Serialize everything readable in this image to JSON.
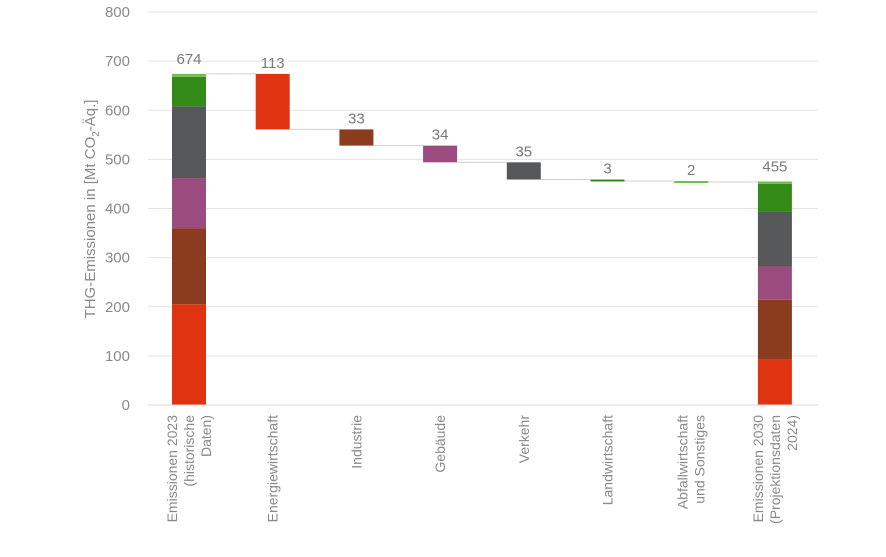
{
  "chart_data": {
    "type": "bar",
    "subtype": "waterfall",
    "ylabel": "THG-Emissionen in [Mt CO",
    "ylabel_sub": "2",
    "ylabel_tail": "-Äq.]",
    "ylim": [
      0,
      800
    ],
    "yticks": [
      0,
      100,
      200,
      300,
      400,
      500,
      600,
      700,
      800
    ],
    "grid": true,
    "categories": [
      [
        "Emissionen 2023",
        "(historische",
        "Daten)"
      ],
      [
        "Energiewirtschaft"
      ],
      [
        "Industrie"
      ],
      [
        "Gebäude"
      ],
      [
        "Verkehr"
      ],
      [
        "Landwirtschaft"
      ],
      [
        "Abfallwirtschaft",
        "und Sonstiges"
      ],
      [
        "Emissionen 2030",
        "(Projektionsdaten",
        "2024)"
      ]
    ],
    "sector_colors": {
      "Energiewirtschaft": "#e03312",
      "Industrie": "#8b3c1e",
      "Gebäude": "#9c4b7f",
      "Verkehr": "#555758",
      "Landwirtschaft": "#338a17",
      "Abfallwirtschaft": "#6bc04b"
    },
    "totals": [
      {
        "index": 0,
        "label": "674",
        "stack": [
          {
            "sector": "Energiewirtschaft",
            "value": 205
          },
          {
            "sector": "Industrie",
            "value": 155
          },
          {
            "sector": "Gebäude",
            "value": 102
          },
          {
            "sector": "Verkehr",
            "value": 146
          },
          {
            "sector": "Landwirtschaft",
            "value": 60
          },
          {
            "sector": "Abfallwirtschaft",
            "value": 6
          }
        ]
      },
      {
        "index": 7,
        "label": "455",
        "stack": [
          {
            "sector": "Energiewirtschaft",
            "value": 92
          },
          {
            "sector": "Industrie",
            "value": 122
          },
          {
            "sector": "Gebäude",
            "value": 68
          },
          {
            "sector": "Verkehr",
            "value": 111
          },
          {
            "sector": "Landwirtschaft",
            "value": 57
          },
          {
            "sector": "Abfallwirtschaft",
            "value": 5
          }
        ]
      }
    ],
    "changes": [
      {
        "index": 1,
        "sector": "Energiewirtschaft",
        "label": "113",
        "top": 674,
        "bottom": 561
      },
      {
        "index": 2,
        "sector": "Industrie",
        "label": "33",
        "top": 561,
        "bottom": 528
      },
      {
        "index": 3,
        "sector": "Gebäude",
        "label": "34",
        "top": 528,
        "bottom": 494
      },
      {
        "index": 4,
        "sector": "Verkehr",
        "label": "35",
        "top": 494,
        "bottom": 459
      },
      {
        "index": 5,
        "sector": "Landwirtschaft",
        "label": "3",
        "top": 459,
        "bottom": 456
      },
      {
        "index": 6,
        "sector": "Abfallwirtschaft",
        "label": "2",
        "top": 456,
        "bottom": 454
      }
    ]
  }
}
